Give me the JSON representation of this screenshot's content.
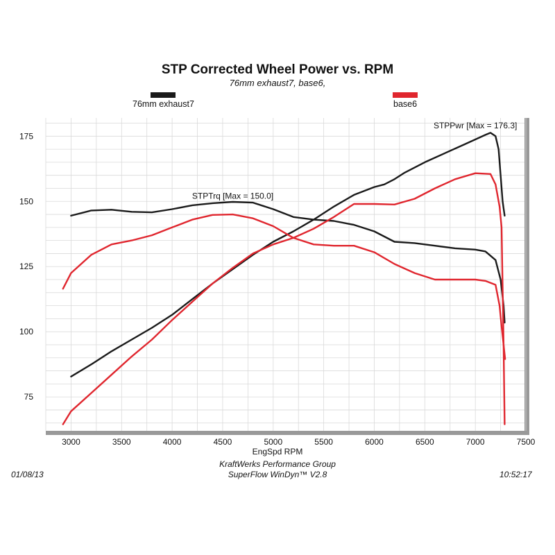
{
  "header": {
    "title": "STP Corrected Wheel Power vs. RPM",
    "subtitle": "76mm exhaust7, base6,"
  },
  "legend": {
    "items": [
      {
        "label": "76mm exhaust7",
        "color": "#1a1a1a"
      },
      {
        "label": "base6",
        "color": "#e0262e"
      }
    ]
  },
  "footer": {
    "date": "01/08/13",
    "company": "KraftWerks Performance Group",
    "software": "SuperFlow WinDyn™ V2.8",
    "time": "10:52:17"
  },
  "colors": {
    "exhaust": "#1a1a1a",
    "base": "#e0262e",
    "grid": "#d9d9d9",
    "frame": "#999999"
  },
  "chart_data": {
    "type": "line",
    "title": "STP Corrected Wheel Power vs. RPM",
    "subtitle": "76mm exhaust7, base6,",
    "xlabel": "EngSpd  RPM",
    "ylabel": "",
    "xlim": [
      2750,
      7500
    ],
    "ylim": [
      62,
      182
    ],
    "x_ticks": [
      3000,
      3500,
      4000,
      4500,
      5000,
      5500,
      6000,
      6500,
      7000,
      7500
    ],
    "y_ticks": [
      75,
      100,
      125,
      150,
      175
    ],
    "grid": true,
    "annotations": [
      {
        "text": "STPPwr [Max = 176.3]",
        "x": 7000,
        "y": 178
      },
      {
        "text": "STPTrq [Max = 150.0]",
        "x": 4600,
        "y": 151
      }
    ],
    "series": [
      {
        "name": "76mm exhaust7",
        "metric": "STPPwr",
        "color": "#1a1a1a",
        "points": [
          [
            3000,
            82.8
          ],
          [
            3200,
            87.5
          ],
          [
            3400,
            92.5
          ],
          [
            3600,
            97.0
          ],
          [
            3800,
            101.5
          ],
          [
            4000,
            106.5
          ],
          [
            4200,
            112.5
          ],
          [
            4400,
            118.5
          ],
          [
            4600,
            124.0
          ],
          [
            4800,
            129.5
          ],
          [
            5000,
            134.5
          ],
          [
            5200,
            138.5
          ],
          [
            5400,
            143.0
          ],
          [
            5600,
            148.0
          ],
          [
            5800,
            152.5
          ],
          [
            6000,
            155.5
          ],
          [
            6100,
            156.5
          ],
          [
            6200,
            158.5
          ],
          [
            6300,
            161.0
          ],
          [
            6500,
            165.0
          ],
          [
            6700,
            168.5
          ],
          [
            6900,
            172.0
          ],
          [
            7100,
            175.5
          ],
          [
            7150,
            176.3
          ],
          [
            7200,
            175.0
          ],
          [
            7230,
            170.0
          ],
          [
            7250,
            160.0
          ],
          [
            7270,
            150.0
          ],
          [
            7290,
            144.5
          ]
        ]
      },
      {
        "name": "76mm exhaust7",
        "metric": "STPTrq",
        "color": "#1a1a1a",
        "points": [
          [
            3000,
            144.5
          ],
          [
            3200,
            146.5
          ],
          [
            3400,
            146.8
          ],
          [
            3600,
            146.0
          ],
          [
            3800,
            145.8
          ],
          [
            4000,
            147.0
          ],
          [
            4200,
            148.5
          ],
          [
            4400,
            149.3
          ],
          [
            4600,
            149.8
          ],
          [
            4800,
            149.5
          ],
          [
            5000,
            147.0
          ],
          [
            5200,
            144.0
          ],
          [
            5400,
            143.0
          ],
          [
            5600,
            142.5
          ],
          [
            5800,
            141.0
          ],
          [
            6000,
            138.5
          ],
          [
            6200,
            134.5
          ],
          [
            6400,
            134.0
          ],
          [
            6600,
            133.0
          ],
          [
            6800,
            132.0
          ],
          [
            7000,
            131.5
          ],
          [
            7100,
            130.8
          ],
          [
            7200,
            127.5
          ],
          [
            7250,
            120.0
          ],
          [
            7280,
            110.0
          ],
          [
            7290,
            103.5
          ]
        ]
      },
      {
        "name": "base6",
        "metric": "STPPwr",
        "color": "#e0262e",
        "points": [
          [
            2920,
            64.5
          ],
          [
            3000,
            69.5
          ],
          [
            3200,
            76.5
          ],
          [
            3400,
            83.5
          ],
          [
            3600,
            90.5
          ],
          [
            3800,
            97.0
          ],
          [
            4000,
            104.5
          ],
          [
            4200,
            111.5
          ],
          [
            4400,
            118.5
          ],
          [
            4600,
            124.5
          ],
          [
            4800,
            130.0
          ],
          [
            5000,
            133.5
          ],
          [
            5200,
            136.0
          ],
          [
            5400,
            139.5
          ],
          [
            5600,
            144.0
          ],
          [
            5800,
            149.0
          ],
          [
            6000,
            149.0
          ],
          [
            6200,
            148.8
          ],
          [
            6400,
            151.0
          ],
          [
            6600,
            155.0
          ],
          [
            6800,
            158.5
          ],
          [
            7000,
            160.8
          ],
          [
            7150,
            160.5
          ],
          [
            7200,
            156.5
          ],
          [
            7240,
            148.0
          ],
          [
            7260,
            140.0
          ],
          [
            7280,
            95.0
          ],
          [
            7290,
            64.5
          ]
        ]
      },
      {
        "name": "base6",
        "metric": "STPTrq",
        "color": "#e0262e",
        "points": [
          [
            2920,
            116.5
          ],
          [
            3000,
            122.5
          ],
          [
            3200,
            129.5
          ],
          [
            3400,
            133.5
          ],
          [
            3600,
            135.0
          ],
          [
            3800,
            137.0
          ],
          [
            4000,
            140.0
          ],
          [
            4200,
            143.0
          ],
          [
            4400,
            144.8
          ],
          [
            4600,
            145.0
          ],
          [
            4800,
            143.5
          ],
          [
            5000,
            140.5
          ],
          [
            5200,
            136.0
          ],
          [
            5400,
            133.5
          ],
          [
            5600,
            133.0
          ],
          [
            5800,
            133.0
          ],
          [
            6000,
            130.5
          ],
          [
            6200,
            126.0
          ],
          [
            6400,
            122.5
          ],
          [
            6600,
            120.0
          ],
          [
            6800,
            120.0
          ],
          [
            7000,
            120.0
          ],
          [
            7100,
            119.5
          ],
          [
            7200,
            118.0
          ],
          [
            7240,
            110.0
          ],
          [
            7260,
            102.0
          ],
          [
            7280,
            95.0
          ],
          [
            7295,
            89.5
          ]
        ]
      }
    ]
  }
}
